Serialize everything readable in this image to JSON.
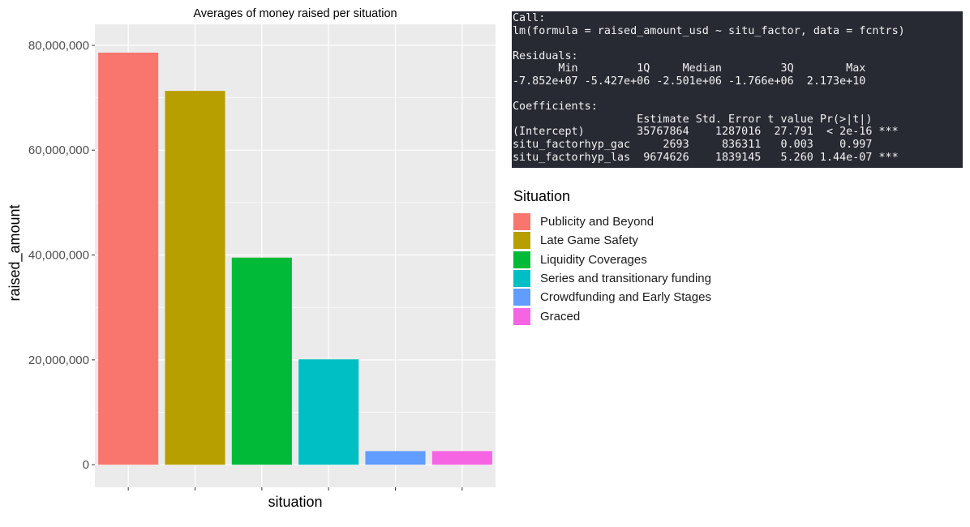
{
  "chart_data": {
    "type": "bar",
    "title": "Averages of money raised per situation",
    "xlabel": "situation",
    "ylabel": "raised_amount",
    "ylim": [
      -4300000,
      84000000
    ],
    "yticks": [
      0,
      20000000,
      40000000,
      60000000,
      80000000
    ],
    "ytick_labels": [
      "0",
      "20,000,000",
      "40,000,000",
      "60,000,000",
      "80,000,000"
    ],
    "grid": true,
    "legend_position": "right",
    "legend_title": "Situation",
    "categories": [
      "Publicity and Beyond",
      "Late Game Safety",
      "Liquidity Coverages",
      "Series and transitionary funding",
      "Crowdfunding and Early Stages",
      "Graced"
    ],
    "values": [
      78600000,
      71300000,
      39500000,
      20100000,
      2600000,
      2600000
    ],
    "colors": [
      "#F8766D",
      "#B79F00",
      "#00BA38",
      "#00BFC4",
      "#619CFF",
      "#F564E3"
    ]
  },
  "console": {
    "lines": [
      "Call:",
      "lm(formula = raised_amount_usd ~ situ_factor, data = fcntrs)",
      "",
      "Residuals:",
      "       Min         1Q     Median         3Q        Max ",
      "-7.852e+07 -5.427e+06 -2.501e+06 -1.766e+06  2.173e+10 ",
      "",
      "Coefficients:",
      "                   Estimate Std. Error t value Pr(>|t|)    ",
      "(Intercept)        35767864    1287016  27.791  < 2e-16 ***",
      "situ_factorhyp_gac     2693     836311   0.003    0.997    ",
      "situ_factorhyp_las  9674626    1839145   5.260 1.44e-07 ***"
    ]
  }
}
